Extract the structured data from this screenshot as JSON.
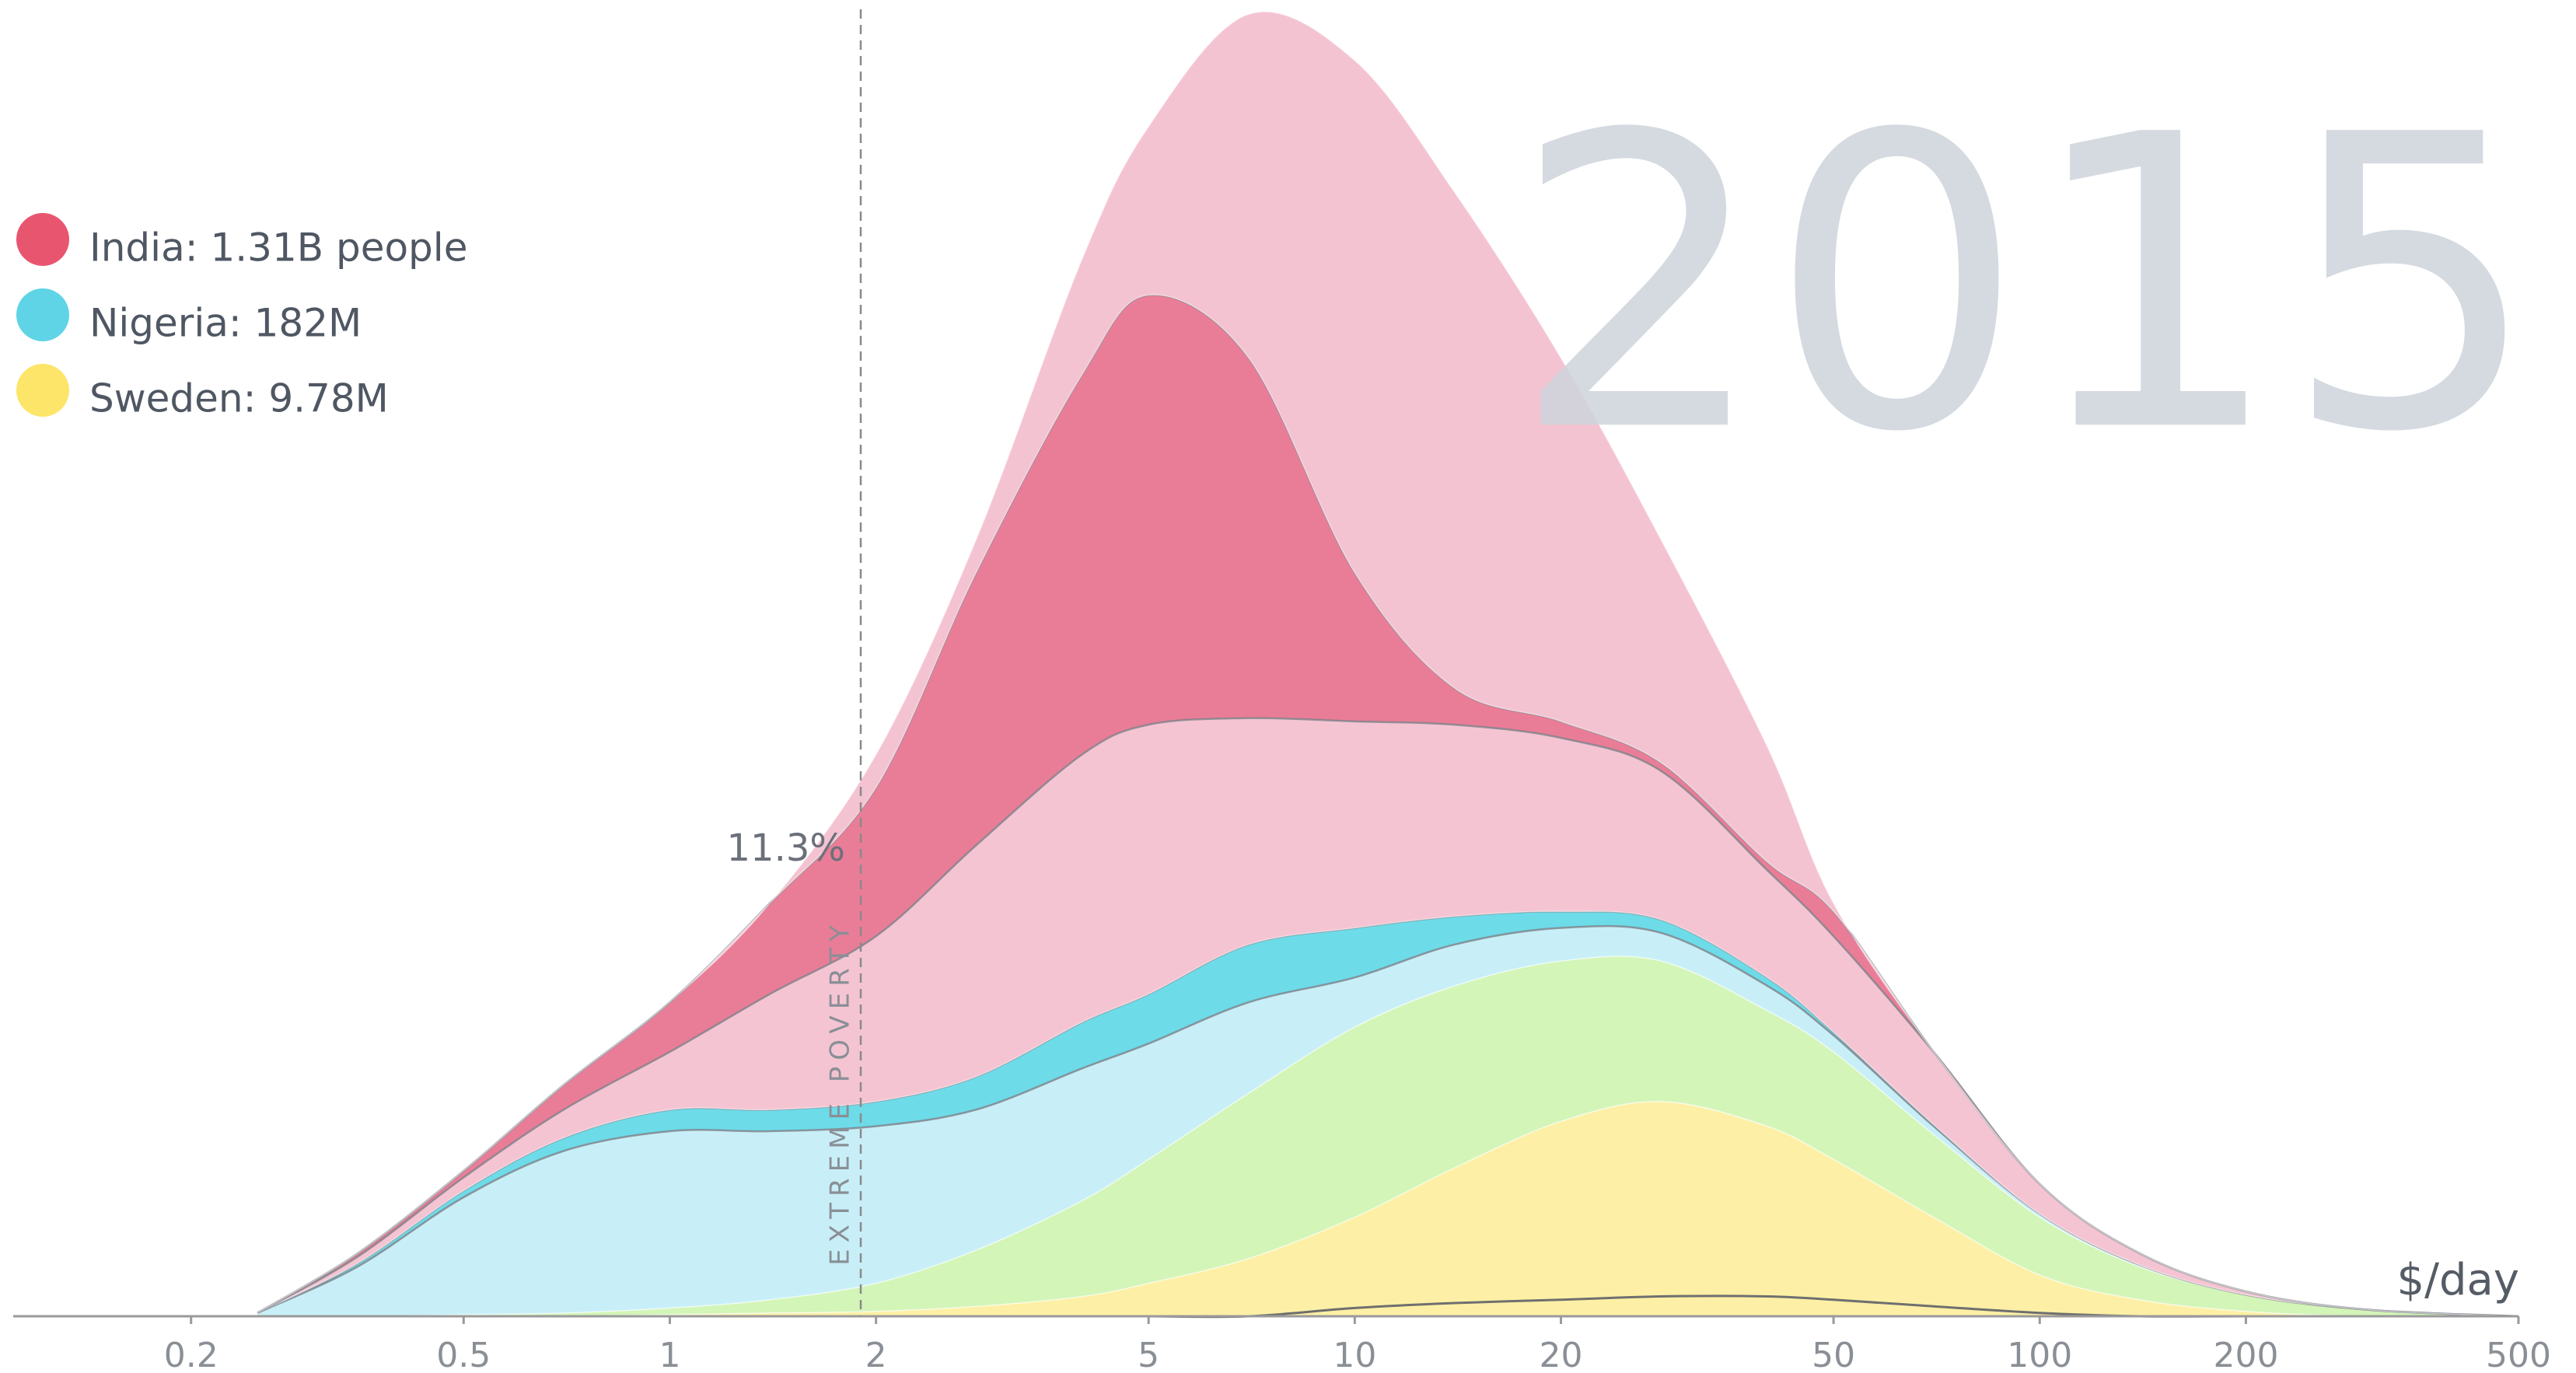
{
  "chart_data": {
    "type": "mountain",
    "year": "2015",
    "x_label": "$/day",
    "xscale": "log",
    "xlim": [
      0.11,
      500
    ],
    "xticks": [
      0.2,
      0.5,
      1,
      2,
      5,
      10,
      20,
      50,
      100,
      200,
      500
    ],
    "ylim": [
      0,
      790
    ],
    "x": [
      0.25,
      0.35,
      0.5,
      0.7,
      1,
      1.4,
      2,
      2.8,
      4,
      5,
      7,
      10,
      14,
      20,
      28,
      40,
      50,
      70,
      100,
      140,
      200,
      300,
      500
    ],
    "series": [
      {
        "name": "Sweden: 9.78M",
        "color": "#fdf0a6",
        "legend_color": "#fde56a",
        "stack": false,
        "values": [
          0,
          0,
          0,
          0,
          0,
          0,
          0,
          0,
          0,
          0,
          0,
          5,
          8,
          10,
          12,
          12,
          10,
          6,
          2,
          0,
          0,
          0,
          0
        ]
      },
      {
        "color": "#fdf0a6",
        "stack": true,
        "values": [
          0,
          0,
          0,
          0,
          1,
          2,
          3,
          6,
          12,
          20,
          35,
          60,
          90,
          118,
          130,
          115,
          95,
          60,
          25,
          10,
          3,
          0,
          0
        ]
      },
      {
        "color": "#d3f5b8",
        "stack": true,
        "values": [
          0,
          0,
          1,
          2,
          4,
          8,
          17,
          34,
          58,
          75,
          100,
          115,
          110,
          97,
          85,
          70,
          65,
          50,
          35,
          20,
          10,
          4,
          0
        ]
      },
      {
        "color": "#c8eff7",
        "stack": true,
        "values": [
          2,
          30,
          71,
          98,
          107,
          102,
          95,
          85,
          80,
          70,
          55,
          30,
          25,
          20,
          17,
          15,
          10,
          5,
          2,
          1,
          0,
          0,
          0
        ]
      },
      {
        "name": "Nigeria: 182M",
        "color": "#6ddbe8",
        "legend_color": "#5fd4e6",
        "stack": true,
        "values": [
          0,
          2,
          4,
          8,
          13,
          13,
          15,
          20,
          28,
          30,
          35,
          30,
          17,
          10,
          8,
          5,
          2,
          1,
          0,
          0,
          0,
          0,
          0
        ]
      },
      {
        "color": "#f5c4d2",
        "stack": true,
        "values": [
          0,
          4,
          8,
          17,
          35,
          70,
          100,
          140,
          162,
          163,
          137,
          125,
          116,
          105,
          90,
          65,
          58,
          44,
          18,
          7,
          2,
          0,
          0
        ]
      },
      {
        "name": "India: 1.31B people",
        "color": "#e97d97",
        "legend_color": "#e8556f",
        "stack": true,
        "values": [
          0,
          2,
          4,
          15,
          30,
          55,
          90,
          165,
          230,
          260,
          218,
          90,
          22,
          10,
          5,
          5,
          15,
          0,
          0,
          0,
          0,
          0,
          0
        ]
      },
      {
        "color": "#f4c3d1",
        "stack": true,
        "values": [
          0,
          0,
          0,
          0,
          0,
          0,
          20,
          20,
          70,
          102,
          208,
          310,
          300,
          220,
          135,
          70,
          5,
          0,
          0,
          0,
          0,
          0,
          0
        ]
      }
    ],
    "poverty_line": 1.9,
    "poverty_label": "EXTREME POVERTY",
    "poverty_annotation": "11.3%"
  }
}
